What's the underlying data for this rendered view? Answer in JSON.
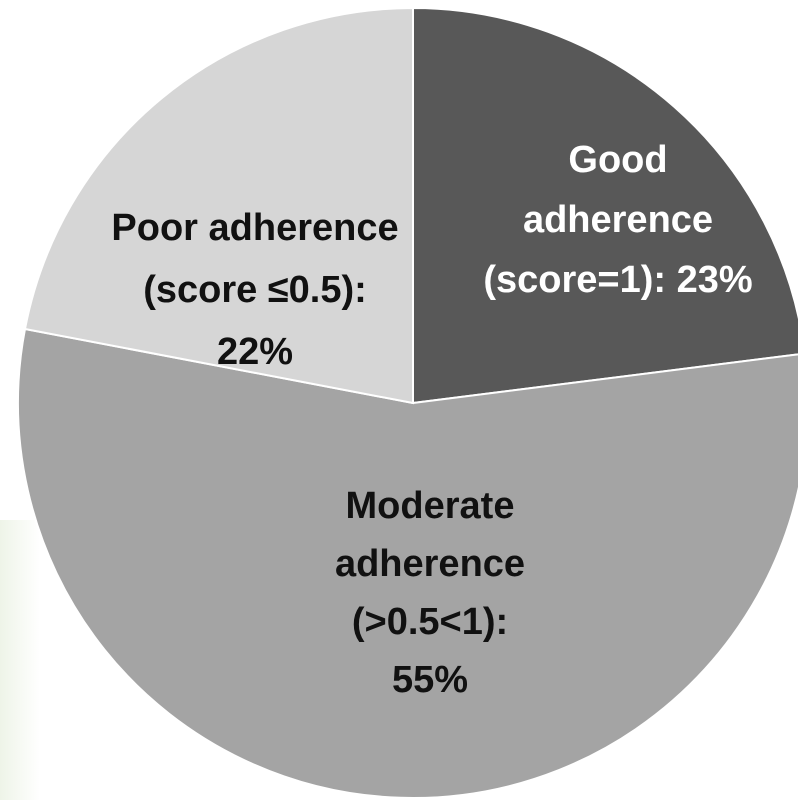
{
  "chart_data": {
    "type": "pie",
    "title": "",
    "start_angle_deg": 0,
    "direction": "clockwise",
    "slices": [
      {
        "name": "Good adherence (score=1)",
        "value": 23,
        "color": "#585858",
        "text_color": "#ffffff",
        "label_lines": [
          "Good",
          "adherence",
          "(score=1): 23%"
        ]
      },
      {
        "name": "Moderate adherence (>0.5<1)",
        "value": 55,
        "color": "#a4a4a4",
        "text_color": "#111111",
        "label_lines": [
          "Moderate",
          "adherence",
          "(>0.5<1):",
          "55%"
        ]
      },
      {
        "name": "Poor adherence (score ≤0.5)",
        "value": 22,
        "color": "#d6d6d6",
        "text_color": "#111111",
        "label_lines": [
          "Poor adherence",
          "(score ≤0.5):",
          "22%"
        ]
      }
    ],
    "legend": "none",
    "grid": false
  }
}
